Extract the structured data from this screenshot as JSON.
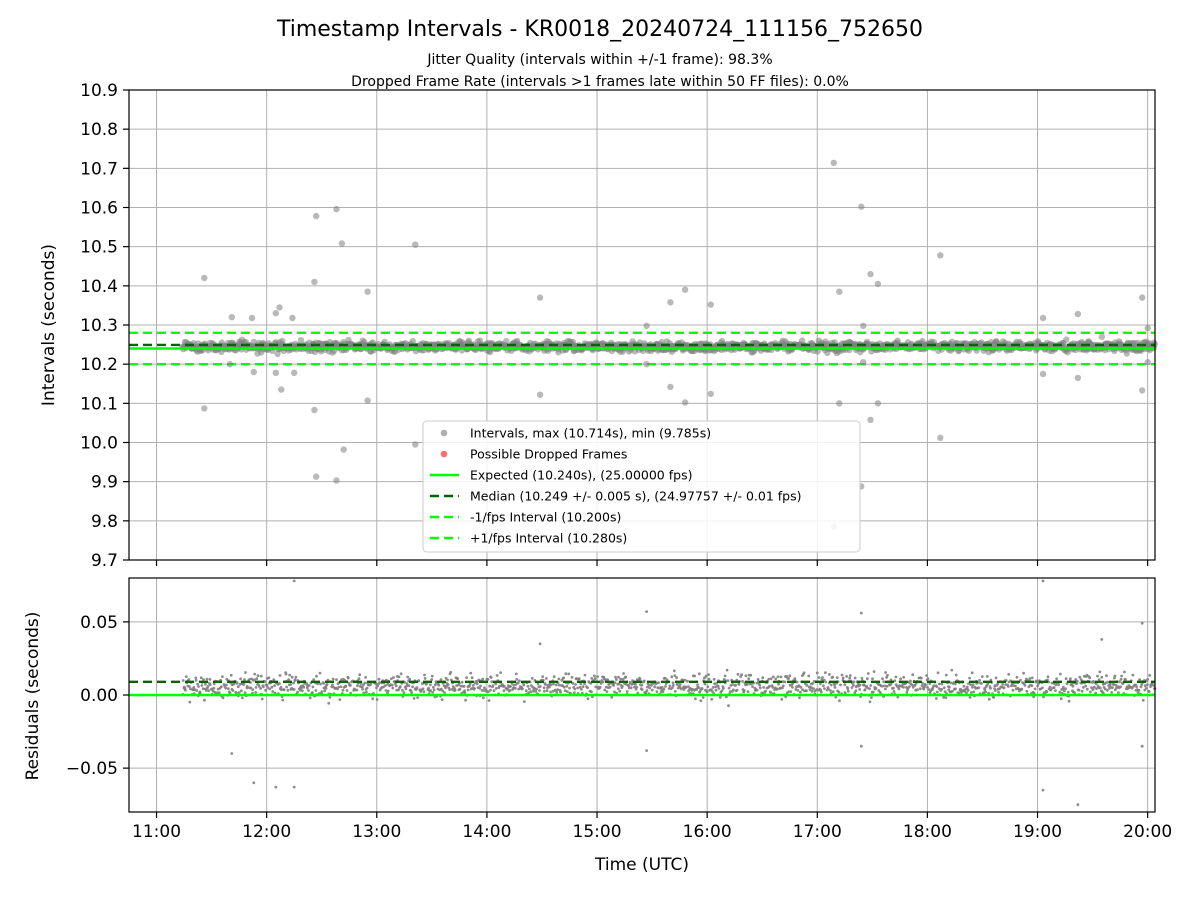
{
  "title": "Timestamp Intervals - KR0018_20240724_111156_752650",
  "subtitle_lines": [
    "Jitter Quality (intervals within +/-1 frame): 98.3%",
    "Dropped Frame Rate (intervals >1 frames late within 50 FF files): 0.0%"
  ],
  "colors": {
    "points": "#808080",
    "dropped": "#ff0000",
    "expected": "#00ff00",
    "median": "#006400",
    "bounds": "#00ff00",
    "grid": "#b0b0b0"
  },
  "chart_data": [
    {
      "type": "scatter",
      "ylabel": "Intervals (seconds)",
      "xlim": [
        "10:45",
        "20:04"
      ],
      "ylim": [
        9.7,
        10.9
      ],
      "yticks": [
        "10.9",
        "10.8",
        "10.7",
        "10.6",
        "10.5",
        "10.4",
        "10.3",
        "10.2",
        "10.1",
        "10.0",
        "9.9",
        "9.8",
        "9.7"
      ],
      "grid": true,
      "legend_position": "lower center",
      "bulk_band": {
        "x_start": "11:14",
        "x_end": "20:04",
        "center": 10.245,
        "spread": 0.012
      },
      "outliers": [
        [
          "11:26",
          10.42
        ],
        [
          "11:26",
          10.087
        ],
        [
          "11:41",
          10.32
        ],
        [
          "11:52",
          10.318
        ],
        [
          "11:53",
          10.18
        ],
        [
          "11:57",
          10.23
        ],
        [
          "11:40",
          10.2
        ],
        [
          "12:05",
          10.33
        ],
        [
          "12:07",
          10.345
        ],
        [
          "12:08",
          10.135
        ],
        [
          "12:05",
          10.178
        ],
        [
          "12:14",
          10.318
        ],
        [
          "12:15",
          10.178
        ],
        [
          "12:26",
          10.41
        ],
        [
          "12:26",
          10.083
        ],
        [
          "12:27",
          10.578
        ],
        [
          "12:27",
          9.913
        ],
        [
          "12:38",
          10.596
        ],
        [
          "12:38",
          9.903
        ],
        [
          "12:41",
          10.508
        ],
        [
          "12:42",
          9.982
        ],
        [
          "12:55",
          10.385
        ],
        [
          "12:55",
          10.107
        ],
        [
          "13:21",
          10.505
        ],
        [
          "13:21",
          9.995
        ],
        [
          "14:29",
          10.37
        ],
        [
          "14:29",
          10.122
        ],
        [
          "15:27",
          10.298
        ],
        [
          "15:27",
          10.2
        ],
        [
          "15:40",
          10.358
        ],
        [
          "15:40",
          10.142
        ],
        [
          "15:48",
          10.39
        ],
        [
          "15:48",
          10.102
        ],
        [
          "16:02",
          10.352
        ],
        [
          "16:02",
          10.124
        ],
        [
          "17:09",
          10.714
        ],
        [
          "17:09",
          9.785
        ],
        [
          "17:12",
          10.385
        ],
        [
          "17:12",
          10.1
        ],
        [
          "17:24",
          10.602
        ],
        [
          "17:24",
          9.888
        ],
        [
          "17:25",
          10.298
        ],
        [
          "17:25",
          10.205
        ],
        [
          "17:29",
          10.43
        ],
        [
          "17:29",
          10.058
        ],
        [
          "17:33",
          10.405
        ],
        [
          "17:33",
          10.1
        ],
        [
          "18:07",
          10.478
        ],
        [
          "18:07",
          10.012
        ],
        [
          "19:03",
          10.318
        ],
        [
          "19:03",
          10.175
        ],
        [
          "19:22",
          10.328
        ],
        [
          "19:22",
          10.165
        ],
        [
          "19:35",
          10.27
        ],
        [
          "19:57",
          10.37
        ],
        [
          "19:57",
          10.133
        ],
        [
          "20:00",
          10.292
        ],
        [
          "20:00",
          10.205
        ]
      ],
      "lines": [
        {
          "name": "Expected (10.240s), (25.00000 fps)",
          "y": 10.24,
          "style": "solid",
          "color": "#00ff00"
        },
        {
          "name": "Median (10.249 +/- 0.005 s), (24.97757 +/- 0.01 fps)",
          "y": 10.249,
          "style": "dashed",
          "color": "#006400"
        },
        {
          "name": "-1/fps Interval (10.200s)",
          "y": 10.2,
          "style": "dashed",
          "color": "#00ff00"
        },
        {
          "name": "+1/fps Interval (10.280s)",
          "y": 10.28,
          "style": "dashed",
          "color": "#00ff00"
        }
      ],
      "legend": [
        {
          "label": "Intervals, max (10.714s), min (9.785s)",
          "kind": "marker",
          "color": "#a0a0a0"
        },
        {
          "label": "Possible Dropped Frames",
          "kind": "marker",
          "color": "#ff5555"
        },
        {
          "label": "Expected (10.240s), (25.00000 fps)",
          "kind": "solid",
          "color": "#00ff00"
        },
        {
          "label": "Median (10.249 +/- 0.005 s), (24.97757 +/- 0.01 fps)",
          "kind": "dashed",
          "color": "#006400"
        },
        {
          "label": "-1/fps Interval (10.200s)",
          "kind": "dashed",
          "color": "#00ff00"
        },
        {
          "label": "+1/fps Interval (10.280s)",
          "kind": "dashed",
          "color": "#00ff00"
        }
      ]
    },
    {
      "type": "scatter",
      "xlabel": "Time (UTC)",
      "ylabel": "Residuals (seconds)",
      "xlim": [
        "10:45",
        "20:04"
      ],
      "ylim": [
        -0.08,
        0.08
      ],
      "yticks": [
        {
          "value": 0.05,
          "label": "0.05"
        },
        {
          "value": 0.0,
          "label": "0.00"
        },
        {
          "value": -0.05,
          "label": "−0.05"
        }
      ],
      "xticks": [
        "11:00",
        "12:00",
        "13:00",
        "14:00",
        "15:00",
        "16:00",
        "17:00",
        "18:00",
        "19:00",
        "20:00"
      ],
      "grid": true,
      "bulk_band": {
        "x_start": "11:14",
        "x_end": "20:04",
        "center": 0.006,
        "spread": 0.008
      },
      "outliers": [
        [
          "12:15",
          0.078
        ],
        [
          "19:03",
          0.078
        ],
        [
          "15:27",
          0.057
        ],
        [
          "17:24",
          0.056
        ],
        [
          "19:57",
          0.049
        ],
        [
          "19:35",
          0.038
        ],
        [
          "14:29",
          0.035
        ],
        [
          "11:41",
          -0.04
        ],
        [
          "15:27",
          -0.038
        ],
        [
          "17:24",
          -0.035
        ],
        [
          "19:57",
          -0.035
        ],
        [
          "11:53",
          -0.06
        ],
        [
          "12:05",
          -0.063
        ],
        [
          "12:15",
          -0.063
        ],
        [
          "19:03",
          -0.065
        ],
        [
          "19:22",
          -0.075
        ]
      ],
      "lines": [
        {
          "name": "Median residual",
          "y": 0.009,
          "style": "dashed",
          "color": "#006400"
        },
        {
          "name": "Zero residual",
          "y": 0.0,
          "style": "solid",
          "color": "#00ff00"
        }
      ]
    }
  ]
}
